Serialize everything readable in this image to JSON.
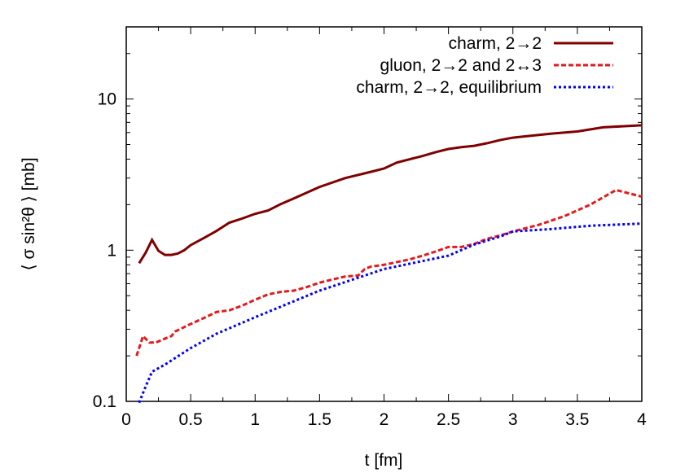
{
  "chart_data": {
    "type": "line",
    "xlabel": "t [fm]",
    "ylabel": "⟨ σ sin²θ ⟩ [mb]",
    "xlim": [
      0,
      4
    ],
    "ylim": [
      0.1,
      30
    ],
    "yscale": "log",
    "grid": false,
    "legend_position": "top-right",
    "x_ticks": [
      "0",
      "0.5",
      "1",
      "1.5",
      "2",
      "2.5",
      "3",
      "3.5",
      "4"
    ],
    "y_ticks": [
      "0.1",
      "1",
      "10"
    ],
    "series": [
      {
        "name": "charm, 2→2",
        "color": "#800000",
        "style": "solid",
        "x": [
          0.1,
          0.15,
          0.2,
          0.25,
          0.3,
          0.35,
          0.4,
          0.45,
          0.5,
          0.6,
          0.7,
          0.8,
          0.9,
          1.0,
          1.1,
          1.2,
          1.3,
          1.5,
          1.7,
          1.9,
          2.0,
          2.1,
          2.3,
          2.4,
          2.5,
          2.6,
          2.7,
          2.8,
          2.9,
          3.0,
          3.3,
          3.5,
          3.7,
          4.0
        ],
        "y": [
          0.82,
          0.96,
          1.17,
          0.99,
          0.93,
          0.93,
          0.95,
          1.0,
          1.08,
          1.2,
          1.34,
          1.52,
          1.62,
          1.74,
          1.83,
          2.02,
          2.2,
          2.62,
          3.0,
          3.3,
          3.47,
          3.8,
          4.2,
          4.45,
          4.67,
          4.8,
          4.9,
          5.1,
          5.35,
          5.55,
          5.9,
          6.1,
          6.5,
          6.7
        ]
      },
      {
        "name": "gluon, 2→2 and 2↔3",
        "color": "#e41a1c",
        "style": "dashed",
        "x": [
          0.08,
          0.13,
          0.18,
          0.23,
          0.3,
          0.35,
          0.38,
          0.5,
          0.6,
          0.7,
          0.8,
          0.9,
          1.0,
          1.1,
          1.2,
          1.3,
          1.4,
          1.5,
          1.6,
          1.7,
          1.8,
          1.85,
          1.9,
          2.0,
          2.2,
          2.3,
          2.4,
          2.5,
          2.6,
          2.7,
          2.8,
          2.9,
          3.0,
          3.2,
          3.4,
          3.6,
          3.8,
          4.0
        ],
        "y": [
          0.2,
          0.27,
          0.245,
          0.245,
          0.26,
          0.27,
          0.29,
          0.325,
          0.355,
          0.39,
          0.4,
          0.43,
          0.47,
          0.51,
          0.53,
          0.54,
          0.57,
          0.61,
          0.64,
          0.67,
          0.68,
          0.75,
          0.78,
          0.8,
          0.87,
          0.92,
          0.98,
          1.05,
          1.05,
          1.1,
          1.19,
          1.25,
          1.33,
          1.47,
          1.68,
          2.0,
          2.5,
          2.26
        ]
      },
      {
        "name": "charm, 2→2, equilibrium",
        "color": "#0000ff",
        "style": "dotted",
        "x": [
          0.1,
          0.15,
          0.2,
          0.3,
          0.5,
          0.7,
          1.0,
          1.5,
          2.0,
          2.5,
          2.7,
          2.9,
          3.0,
          3.3,
          3.6,
          4.0
        ],
        "y": [
          0.098,
          0.125,
          0.157,
          0.175,
          0.225,
          0.28,
          0.36,
          0.54,
          0.75,
          0.92,
          1.09,
          1.23,
          1.33,
          1.38,
          1.45,
          1.5
        ]
      }
    ]
  }
}
